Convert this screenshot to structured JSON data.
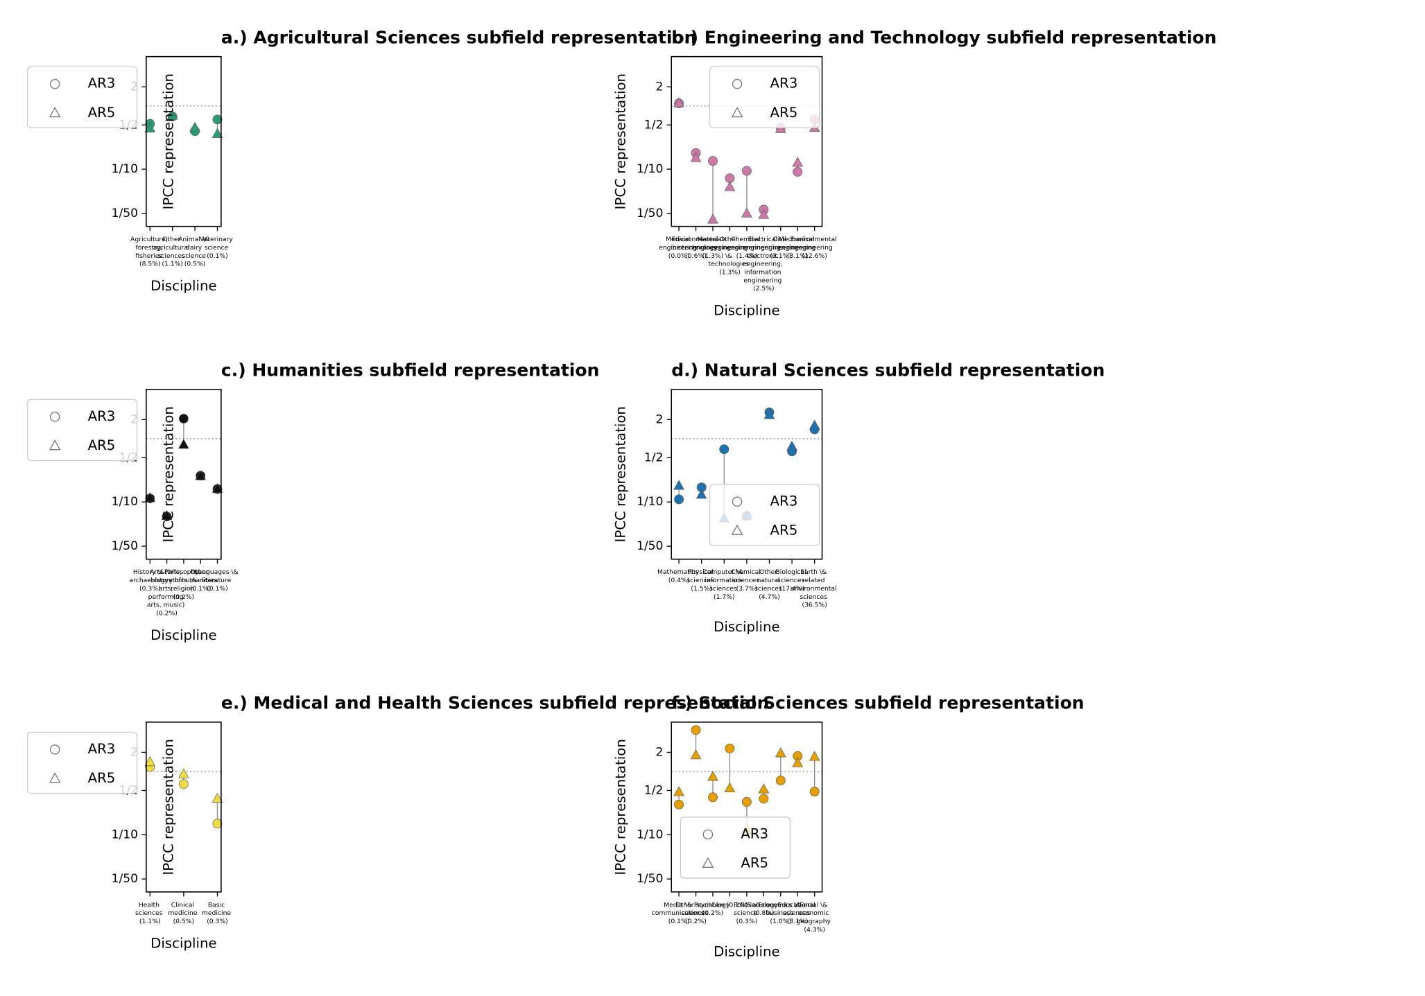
{
  "chart_data": [
    {
      "type": "dot",
      "title": "a.) Agricultural Sciences subfield representation",
      "xlabel": "Discipline",
      "ylabel": "IPCC representation",
      "color": "#2a9d74",
      "log_y": true,
      "hline": 1,
      "legend": "outside left",
      "categories": [
        "Agriculture, forestry, fisheries (8.5%)",
        "Other agricultural sciences (1.1%)",
        "Animal \\& dairy science (0.5%)",
        "Veterinary science (0.1%)"
      ],
      "series": [
        {
          "name": "AR3",
          "marker": "circle",
          "values": [
            0.52,
            0.68,
            0.4,
            0.61
          ]
        },
        {
          "name": "AR5",
          "marker": "triangle",
          "values": [
            0.44,
            0.7,
            0.45,
            0.36
          ]
        }
      ],
      "ylim": [
        0.0125,
        6
      ],
      "yticks": [
        2,
        {
          "value": 0.5,
          "label": "1/2"
        },
        {
          "value": 0.1,
          "label": "1/10"
        },
        {
          "value": 0.02,
          "label": "1/50"
        }
      ]
    },
    {
      "type": "dot",
      "title": "b.) Engineering and Technology subfield representation",
      "xlabel": "Discipline",
      "ylabel": "IPCC representation",
      "color": "#cc79a7",
      "log_y": true,
      "hline": 1,
      "legend": "upper right",
      "categories": [
        "Medical engineering (0.0%)",
        "Environmental biotechnology (0.6%)",
        "Materials engineering (1.3%)",
        "Other engineering \\& technologies (1.3%)",
        "Chemical engineering (1.4%)",
        "Electrical engineering, electronic engineering, information engineering (2.5%)",
        "Civil engineering (3.1%)",
        "Mechanical engineering (3.1%)",
        "Environmental engineering (12.6%)"
      ],
      "series": [
        {
          "name": "AR3",
          "marker": "circle",
          "values": [
            1.1,
            0.18,
            0.135,
            0.072,
            0.094,
            0.023,
            0.45,
            0.091,
            0.61
          ]
        },
        {
          "name": "AR5",
          "marker": "triangle",
          "values": [
            1.1,
            0.15,
            0.016,
            0.052,
            0.02,
            0.019,
            0.43,
            0.126,
            0.45
          ]
        }
      ],
      "ylim": [
        0.0125,
        6
      ],
      "yticks": [
        2,
        {
          "value": 0.5,
          "label": "1/2"
        },
        {
          "value": 0.1,
          "label": "1/10"
        },
        {
          "value": 0.02,
          "label": "1/50"
        }
      ]
    },
    {
      "type": "dot",
      "title": "c.) Humanities subfield representation",
      "xlabel": "Discipline",
      "ylabel": "IPCC representation",
      "color": "#111111",
      "log_y": true,
      "hline": 1,
      "legend": "outside left",
      "categories": [
        "History \\& archaeology (0.3%)",
        "Arts (arts, history of arts, performing arts, music) (0.2%)",
        "Philosophy, ethics \\& religion (0.2%)",
        "Other humanities (0.1%)",
        "Languages \\& literature (0.1%)"
      ],
      "series": [
        {
          "name": "AR3",
          "marker": "circle",
          "values": [
            0.114,
            0.059,
            2.07,
            0.26,
            0.16
          ]
        },
        {
          "name": "AR5",
          "marker": "triangle",
          "values": [
            0.115,
            0.06,
            0.8,
            0.255,
            0.16
          ]
        }
      ],
      "ylim": [
        0.0125,
        6
      ],
      "yticks": [
        2,
        {
          "value": 0.5,
          "label": "1/2"
        },
        {
          "value": 0.1,
          "label": "1/10"
        },
        {
          "value": 0.02,
          "label": "1/50"
        }
      ]
    },
    {
      "type": "dot",
      "title": "d.) Natural Sciences subfield representation",
      "xlabel": "Discipline",
      "ylabel": "IPCC representation",
      "color": "#1f72b0",
      "log_y": true,
      "hline": 1,
      "legend": "lower right",
      "categories": [
        "Mathematics (0.4%)",
        "Physical sciences (1.5%)",
        "Computer \\& information sciences (1.7%)",
        "Chemical sciences (3.7%)",
        "Other natural sciences (4.7%)",
        "Biological sciences (17.4%)",
        "Earth \\& related environmental sciences (36.5%)"
      ],
      "series": [
        {
          "name": "AR3",
          "marker": "circle",
          "values": [
            0.11,
            0.17,
            0.68,
            0.06,
            2.6,
            0.63,
            1.4
          ]
        },
        {
          "name": "AR5",
          "marker": "triangle",
          "values": [
            0.18,
            0.13,
            0.055,
            0.06,
            2.35,
            0.75,
            1.6
          ]
        }
      ],
      "ylim": [
        0.0125,
        6
      ],
      "yticks": [
        2,
        {
          "value": 0.5,
          "label": "1/2"
        },
        {
          "value": 0.1,
          "label": "1/10"
        },
        {
          "value": 0.02,
          "label": "1/50"
        }
      ]
    },
    {
      "type": "dot",
      "title": "e.) Medical and Health Sciences subfield representation",
      "xlabel": "Discipline",
      "ylabel": "IPCC representation",
      "color": "#eedc43",
      "log_y": true,
      "hline": 1,
      "legend": "outside left",
      "categories": [
        "Health sciences (1.1%)",
        "Clinical medicine (0.5%)",
        "Basic medicine (0.3%)"
      ],
      "series": [
        {
          "name": "AR3",
          "marker": "circle",
          "values": [
            1.18,
            0.63,
            0.15
          ]
        },
        {
          "name": "AR5",
          "marker": "triangle",
          "values": [
            1.4,
            0.9,
            0.37
          ]
        }
      ],
      "ylim": [
        0.0125,
        6
      ],
      "yticks": [
        2,
        {
          "value": 0.5,
          "label": "1/2"
        },
        {
          "value": 0.1,
          "label": "1/10"
        },
        {
          "value": 0.02,
          "label": "1/50"
        }
      ]
    },
    {
      "type": "dot",
      "title": "f.) Social Sciences subfield representation",
      "xlabel": "Discipline",
      "ylabel": "IPCC representation",
      "color": "#e69f00",
      "log_y": true,
      "hline": 1,
      "legend": "lower left",
      "categories": [
        "Media \\& communications (0.1%)",
        "Other social sciences (0.2%)",
        "Psychology (0.2%)",
        "Law (0.2%)",
        "Political science (0.3%)",
        "Sociology (0.8%)",
        "Economics \\& business (1.0%)",
        "Educational sciences (3.1%)",
        "Social \\& economic geography (4.3%)"
      ],
      "series": [
        {
          "name": "AR3",
          "marker": "circle",
          "values": [
            0.3,
            4.5,
            0.39,
            2.3,
            0.33,
            0.37,
            0.72,
            1.75,
            0.48
          ]
        },
        {
          "name": "AR5",
          "marker": "triangle",
          "values": [
            0.47,
            1.8,
            0.82,
            0.54,
            0.12,
            0.52,
            1.93,
            1.35,
            1.7
          ]
        }
      ],
      "ylim": [
        0.0125,
        6
      ],
      "yticks": [
        2,
        {
          "value": 0.5,
          "label": "1/2"
        },
        {
          "value": 0.1,
          "label": "1/10"
        },
        {
          "value": 0.02,
          "label": "1/50"
        }
      ]
    }
  ]
}
